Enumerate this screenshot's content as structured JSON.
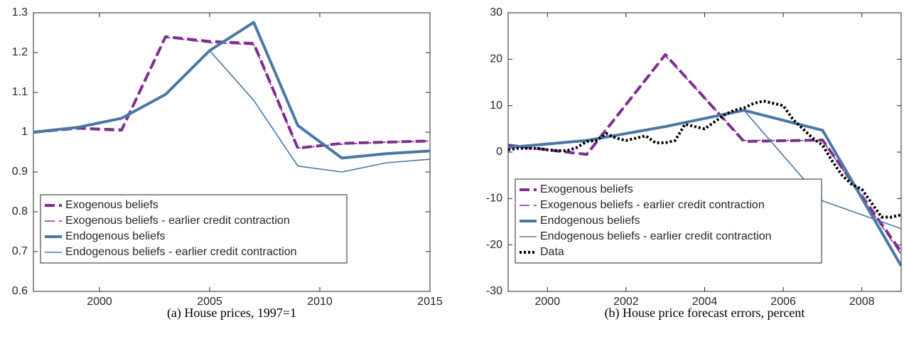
{
  "chart_data": [
    {
      "type": "line",
      "caption": "(a) House prices, 1997=1",
      "xlim": [
        1997,
        2015
      ],
      "xticks": [
        2000,
        2005,
        2010,
        2015
      ],
      "ylim": [
        0.6,
        1.3
      ],
      "yticks": [
        0.6,
        0.7,
        0.8,
        0.9,
        1,
        1.1,
        1.2,
        1.3
      ],
      "legend": "lower left",
      "series": [
        {
          "name": "Exogenous beliefs",
          "color": "#7e2f8e",
          "style": "dashed",
          "width": "thick",
          "x": [
            1997,
            1999,
            2001,
            2003,
            2005,
            2007,
            2009,
            2011,
            2013,
            2015
          ],
          "values": [
            1.0,
            1.01,
            1.005,
            1.24,
            1.228,
            1.223,
            0.96,
            0.972,
            0.975,
            0.978
          ]
        },
        {
          "name": "Exogenous beliefs - earlier credit contraction",
          "color": "#7e2f8e",
          "style": "dashed",
          "width": "thin",
          "x": [
            1997,
            1999,
            2001,
            2003,
            2005,
            2007,
            2009,
            2011,
            2013,
            2015
          ],
          "values": [
            1.0,
            1.012,
            1.008,
            1.238,
            1.225,
            1.22,
            0.96,
            0.97,
            0.975,
            0.978
          ]
        },
        {
          "name": "Endogenous beliefs",
          "color": "#4a78a6",
          "style": "solid",
          "width": "thick",
          "x": [
            1997,
            1999,
            2001,
            2003,
            2005,
            2007,
            2009,
            2011,
            2013,
            2015
          ],
          "values": [
            1.0,
            1.012,
            1.035,
            1.095,
            1.205,
            1.276,
            1.017,
            0.935,
            0.946,
            0.953
          ]
        },
        {
          "name": "Endogenous beliefs - earlier credit contraction",
          "color": "#4a78a6",
          "style": "solid",
          "width": "thin",
          "x": [
            1997,
            1999,
            2001,
            2003,
            2005,
            2007,
            2009,
            2011,
            2013,
            2015
          ],
          "values": [
            1.0,
            1.012,
            1.035,
            1.095,
            1.205,
            1.08,
            0.915,
            0.9,
            0.923,
            0.932
          ]
        }
      ]
    },
    {
      "type": "line",
      "caption": "(b) House price forecast errors, percent",
      "xlim": [
        1999,
        2009
      ],
      "xticks": [
        2000,
        2002,
        2004,
        2006,
        2008
      ],
      "ylim": [
        -30,
        30
      ],
      "yticks": [
        -30,
        -20,
        -10,
        0,
        10,
        20,
        30
      ],
      "legend": "lower left",
      "series": [
        {
          "name": "Exogenous beliefs",
          "color": "#7e2f8e",
          "style": "dashed",
          "width": "thick",
          "x": [
            1999,
            2001,
            2003,
            2005,
            2007,
            2009
          ],
          "values": [
            1.5,
            -0.5,
            21,
            2.3,
            2.6,
            -21.5
          ]
        },
        {
          "name": "Exogenous beliefs - earlier credit contraction",
          "color": "#7e2f8e",
          "style": "dashed",
          "width": "thin",
          "x": [
            1999,
            2001,
            2003,
            2005,
            2007,
            2009
          ],
          "values": [
            1.2,
            -0.3,
            20.8,
            2.5,
            2.5,
            -22
          ]
        },
        {
          "name": "Endogenous beliefs",
          "color": "#4a78a6",
          "style": "solid",
          "width": "thick",
          "x": [
            1999,
            2001,
            2003,
            2005,
            2007,
            2009
          ],
          "values": [
            1,
            2.5,
            5.5,
            9,
            4.7,
            -24.5
          ]
        },
        {
          "name": "Endogenous beliefs - earlier credit contraction",
          "color": "#4a78a6",
          "style": "solid",
          "width": "thin",
          "x": [
            1999,
            2001,
            2003,
            2005,
            2007,
            2009
          ],
          "values": [
            1,
            2.5,
            5.5,
            9,
            -10.5,
            -16.5
          ]
        },
        {
          "name": "Data",
          "color": "#000000",
          "style": "dotted",
          "width": "thick",
          "x": [
            1999,
            1999.25,
            1999.5,
            1999.75,
            2000,
            2000.25,
            2000.5,
            2000.75,
            2001,
            2001.25,
            2001.5,
            2001.75,
            2002,
            2002.25,
            2002.5,
            2002.75,
            2003,
            2003.25,
            2003.5,
            2003.75,
            2004,
            2004.25,
            2004.5,
            2004.75,
            2005,
            2005.25,
            2005.5,
            2005.75,
            2006,
            2006.25,
            2006.5,
            2006.75,
            2007,
            2007.25,
            2007.5,
            2007.75,
            2008,
            2008.25,
            2008.5,
            2008.75,
            2009
          ],
          "values": [
            0.5,
            0.8,
            0.8,
            0.8,
            0.5,
            0.3,
            0.3,
            1,
            2.3,
            2.5,
            4,
            3,
            2.5,
            3,
            3.5,
            2,
            2,
            2.5,
            6,
            5.5,
            5,
            6.5,
            8,
            9,
            9.5,
            10.5,
            11,
            10.5,
            10,
            7,
            5,
            3,
            1.5,
            -2,
            -5,
            -7,
            -8,
            -11,
            -14,
            -14,
            -13.5
          ]
        }
      ]
    }
  ]
}
